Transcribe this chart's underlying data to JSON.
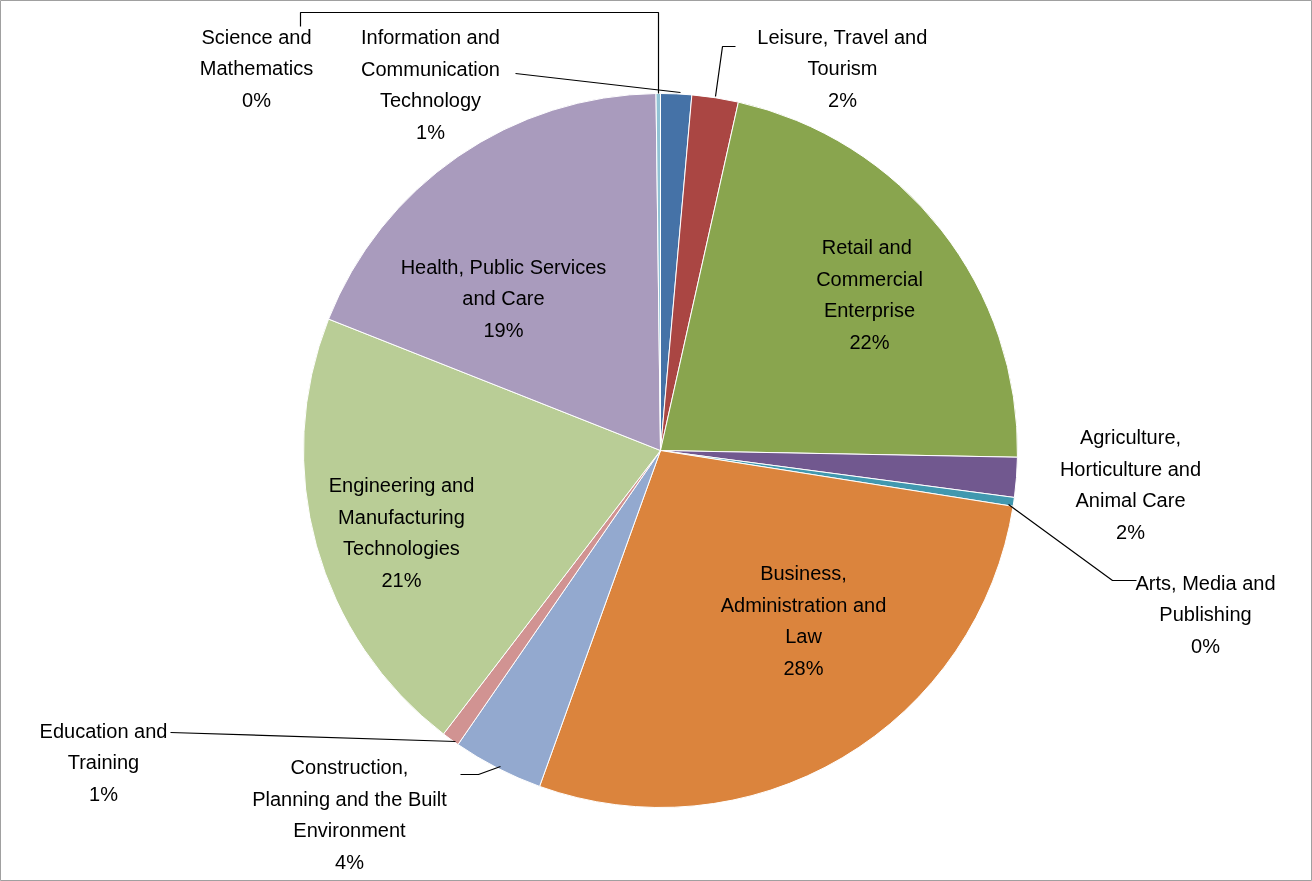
{
  "chart_data": {
    "type": "pie",
    "categories": [
      "Information and Communication Technology",
      "Leisure, Travel and Tourism",
      "Retail  and Commercial Enterprise",
      "Agriculture, Horticulture and Animal Care",
      "Arts, Media and Publishing",
      "Business, Administration and Law",
      "Construction, Planning and the Built Environment",
      "Education and Training",
      "Engineering and Manufacturing Technologies",
      "Health, Public Services and Care",
      "Science and Mathematics"
    ],
    "values": [
      1.4,
      2.1,
      21.8,
      1.8,
      0.4,
      28.0,
      4.1,
      0.8,
      20.6,
      18.8,
      0.2
    ],
    "value_labels": [
      "1%",
      "2%",
      "22%",
      "2%",
      "0%",
      "28%",
      "4%",
      "1%",
      "21%",
      "19%",
      "0%"
    ],
    "colors": [
      "#4572a7",
      "#aa4643",
      "#89a54e",
      "#71588f",
      "#4198af",
      "#db843d",
      "#93a9cf",
      "#d19392",
      "#b9cd96",
      "#a99bbd",
      "#91c3d5"
    ]
  }
}
